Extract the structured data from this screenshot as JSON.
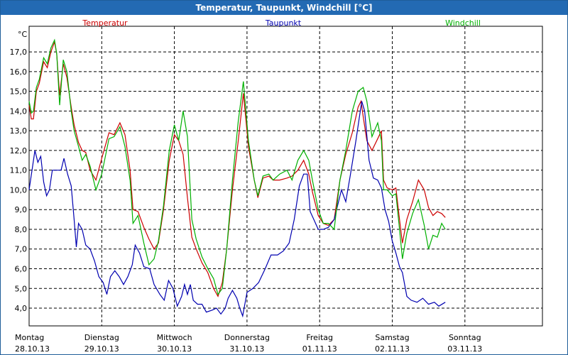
{
  "window": {
    "title": "Temperatur, Taupunkt, Windchill [°C]"
  },
  "chart_data": {
    "type": "line",
    "title": "Temperatur, Taupunkt, Windchill [°C]",
    "ylabel": "°C",
    "ylim": [
      3.1,
      18.3
    ],
    "xlim": [
      0,
      7
    ],
    "grid": true,
    "legend": "top",
    "yticks": [
      4.0,
      5.0,
      6.0,
      7.0,
      8.0,
      9.0,
      10.0,
      11.0,
      12.0,
      13.0,
      14.0,
      15.0,
      16.0,
      17.0
    ],
    "ytick_labels": [
      "4,0",
      "5,0",
      "6,0",
      "7,0",
      "8,0",
      "9,0",
      "10,0",
      "11,0",
      "12,0",
      "13,0",
      "14,0",
      "15,0",
      "16,0",
      "17,0"
    ],
    "x_day_labels": [
      {
        "day": "Montag",
        "date": "28.10.13"
      },
      {
        "day": "Dienstag",
        "date": "29.10.13"
      },
      {
        "day": "Mittwoch",
        "date": "30.10.13"
      },
      {
        "day": "Donnerstag",
        "date": "31.10.13"
      },
      {
        "day": "Freitag",
        "date": "01.11.13"
      },
      {
        "day": "Samstag",
        "date": "02.11.13"
      },
      {
        "day": "Sonntag",
        "date": "03.11.13"
      }
    ],
    "series": [
      {
        "name": "Temperatur",
        "color": "#cc0000",
        "points": [
          [
            0,
            14.3
          ],
          [
            0.03,
            13.6
          ],
          [
            0.06,
            13.6
          ],
          [
            0.1,
            15.0
          ],
          [
            0.14,
            15.4
          ],
          [
            0.2,
            16.5
          ],
          [
            0.25,
            16.2
          ],
          [
            0.3,
            17.0
          ],
          [
            0.35,
            17.5
          ],
          [
            0.38,
            16.9
          ],
          [
            0.42,
            14.8
          ],
          [
            0.47,
            16.4
          ],
          [
            0.52,
            15.7
          ],
          [
            0.58,
            14.2
          ],
          [
            0.62,
            13.3
          ],
          [
            0.68,
            12.4
          ],
          [
            0.73,
            12.0
          ],
          [
            0.78,
            11.9
          ],
          [
            0.84,
            11.0
          ],
          [
            0.92,
            10.5
          ],
          [
            1.0,
            11.6
          ],
          [
            1.1,
            12.9
          ],
          [
            1.17,
            12.8
          ],
          [
            1.25,
            13.4
          ],
          [
            1.32,
            12.8
          ],
          [
            1.39,
            11.0
          ],
          [
            1.43,
            9.0
          ],
          [
            1.5,
            8.9
          ],
          [
            1.58,
            8.1
          ],
          [
            1.65,
            7.5
          ],
          [
            1.72,
            7.0
          ],
          [
            1.78,
            7.3
          ],
          [
            1.85,
            9.0
          ],
          [
            1.93,
            11.5
          ],
          [
            2.0,
            12.8
          ],
          [
            2.06,
            12.5
          ],
          [
            2.12,
            11.8
          ],
          [
            2.18,
            9.6
          ],
          [
            2.24,
            7.6
          ],
          [
            2.3,
            7.0
          ],
          [
            2.38,
            6.3
          ],
          [
            2.46,
            5.8
          ],
          [
            2.54,
            5.0
          ],
          [
            2.6,
            4.6
          ],
          [
            2.66,
            5.3
          ],
          [
            2.72,
            7.0
          ],
          [
            2.8,
            10.0
          ],
          [
            2.88,
            12.5
          ],
          [
            2.95,
            14.9
          ],
          [
            3.02,
            12.2
          ],
          [
            3.1,
            10.5
          ],
          [
            3.15,
            9.6
          ],
          [
            3.22,
            10.6
          ],
          [
            3.3,
            10.7
          ],
          [
            3.36,
            10.5
          ],
          [
            3.45,
            10.5
          ],
          [
            3.55,
            10.6
          ],
          [
            3.62,
            10.7
          ],
          [
            3.7,
            11.0
          ],
          [
            3.78,
            11.5
          ],
          [
            3.85,
            10.8
          ],
          [
            3.9,
            9.9
          ],
          [
            3.98,
            8.7
          ],
          [
            4.05,
            8.3
          ],
          [
            4.12,
            8.2
          ],
          [
            4.2,
            8.5
          ],
          [
            4.28,
            10.5
          ],
          [
            4.36,
            11.8
          ],
          [
            4.45,
            12.9
          ],
          [
            4.53,
            14.2
          ],
          [
            4.57,
            14.5
          ],
          [
            4.6,
            13.7
          ],
          [
            4.65,
            12.5
          ],
          [
            4.72,
            12.0
          ],
          [
            4.8,
            12.6
          ],
          [
            4.85,
            13.0
          ],
          [
            4.88,
            10.5
          ],
          [
            4.93,
            10.1
          ],
          [
            5.0,
            10.0
          ],
          [
            5.05,
            10.1
          ],
          [
            5.1,
            8.5
          ],
          [
            5.14,
            7.3
          ],
          [
            5.2,
            8.5
          ],
          [
            5.28,
            9.4
          ],
          [
            5.36,
            10.5
          ],
          [
            5.44,
            10.0
          ],
          [
            5.5,
            9.1
          ],
          [
            5.56,
            8.7
          ],
          [
            5.62,
            8.9
          ],
          [
            5.68,
            8.8
          ],
          [
            5.73,
            8.6
          ]
        ]
      },
      {
        "name": "Taupunkt",
        "color": "#0000b0",
        "points": [
          [
            0,
            10.0
          ],
          [
            0.04,
            11.0
          ],
          [
            0.08,
            12.0
          ],
          [
            0.12,
            11.4
          ],
          [
            0.16,
            11.7
          ],
          [
            0.2,
            10.4
          ],
          [
            0.24,
            9.7
          ],
          [
            0.28,
            10.0
          ],
          [
            0.32,
            11.0
          ],
          [
            0.38,
            11.0
          ],
          [
            0.44,
            11.0
          ],
          [
            0.48,
            11.6
          ],
          [
            0.53,
            10.8
          ],
          [
            0.58,
            10.2
          ],
          [
            0.62,
            8.5
          ],
          [
            0.65,
            7.1
          ],
          [
            0.68,
            8.3
          ],
          [
            0.73,
            8.0
          ],
          [
            0.78,
            7.2
          ],
          [
            0.84,
            7.0
          ],
          [
            0.9,
            6.4
          ],
          [
            0.96,
            5.6
          ],
          [
            1.02,
            5.3
          ],
          [
            1.07,
            4.7
          ],
          [
            1.12,
            5.6
          ],
          [
            1.18,
            5.9
          ],
          [
            1.24,
            5.6
          ],
          [
            1.3,
            5.2
          ],
          [
            1.36,
            5.6
          ],
          [
            1.42,
            6.2
          ],
          [
            1.46,
            7.2
          ],
          [
            1.52,
            6.8
          ],
          [
            1.58,
            6.1
          ],
          [
            1.66,
            6.0
          ],
          [
            1.72,
            5.2
          ],
          [
            1.8,
            4.7
          ],
          [
            1.86,
            4.4
          ],
          [
            1.92,
            5.4
          ],
          [
            1.98,
            5.0
          ],
          [
            2.04,
            4.1
          ],
          [
            2.1,
            4.6
          ],
          [
            2.14,
            5.2
          ],
          [
            2.18,
            4.7
          ],
          [
            2.22,
            5.2
          ],
          [
            2.26,
            4.4
          ],
          [
            2.32,
            4.2
          ],
          [
            2.38,
            4.2
          ],
          [
            2.44,
            3.8
          ],
          [
            2.52,
            3.9
          ],
          [
            2.58,
            4.0
          ],
          [
            2.64,
            3.7
          ],
          [
            2.7,
            4.0
          ],
          [
            2.74,
            4.5
          ],
          [
            2.8,
            4.9
          ],
          [
            2.86,
            4.5
          ],
          [
            2.9,
            4.0
          ],
          [
            2.94,
            3.6
          ],
          [
            3.0,
            4.8
          ],
          [
            3.08,
            5.0
          ],
          [
            3.16,
            5.3
          ],
          [
            3.25,
            6.0
          ],
          [
            3.33,
            6.7
          ],
          [
            3.42,
            6.7
          ],
          [
            3.5,
            6.9
          ],
          [
            3.58,
            7.3
          ],
          [
            3.65,
            8.5
          ],
          [
            3.72,
            10.2
          ],
          [
            3.78,
            10.8
          ],
          [
            3.83,
            10.8
          ],
          [
            3.87,
            8.9
          ],
          [
            3.92,
            8.5
          ],
          [
            3.98,
            8.0
          ],
          [
            4.05,
            8.0
          ],
          [
            4.12,
            8.1
          ],
          [
            4.2,
            8.5
          ],
          [
            4.3,
            10.0
          ],
          [
            4.36,
            9.4
          ],
          [
            4.42,
            10.7
          ],
          [
            4.5,
            12.5
          ],
          [
            4.58,
            14.5
          ],
          [
            4.62,
            14.0
          ],
          [
            4.68,
            11.5
          ],
          [
            4.74,
            10.6
          ],
          [
            4.8,
            10.5
          ],
          [
            4.85,
            10.1
          ],
          [
            4.9,
            9.0
          ],
          [
            4.95,
            8.4
          ],
          [
            5.0,
            7.4
          ],
          [
            5.05,
            6.8
          ],
          [
            5.1,
            6.1
          ],
          [
            5.14,
            5.8
          ],
          [
            5.2,
            4.6
          ],
          [
            5.26,
            4.4
          ],
          [
            5.34,
            4.3
          ],
          [
            5.42,
            4.5
          ],
          [
            5.5,
            4.2
          ],
          [
            5.58,
            4.3
          ],
          [
            5.64,
            4.1
          ],
          [
            5.73,
            4.3
          ]
        ]
      },
      {
        "name": "Windchill",
        "color": "#00b000",
        "points": [
          [
            0,
            14.5
          ],
          [
            0.03,
            13.9
          ],
          [
            0.06,
            14.0
          ],
          [
            0.1,
            15.2
          ],
          [
            0.14,
            15.6
          ],
          [
            0.2,
            16.7
          ],
          [
            0.25,
            16.4
          ],
          [
            0.3,
            17.2
          ],
          [
            0.35,
            17.6
          ],
          [
            0.38,
            16.9
          ],
          [
            0.42,
            14.3
          ],
          [
            0.47,
            16.6
          ],
          [
            0.52,
            16.0
          ],
          [
            0.58,
            14.0
          ],
          [
            0.62,
            13.0
          ],
          [
            0.68,
            12.2
          ],
          [
            0.73,
            11.5
          ],
          [
            0.78,
            11.8
          ],
          [
            0.84,
            11.2
          ],
          [
            0.92,
            10.0
          ],
          [
            1.0,
            10.8
          ],
          [
            1.1,
            12.6
          ],
          [
            1.17,
            12.7
          ],
          [
            1.25,
            13.2
          ],
          [
            1.32,
            12.2
          ],
          [
            1.39,
            10.5
          ],
          [
            1.43,
            8.3
          ],
          [
            1.5,
            8.7
          ],
          [
            1.58,
            7.3
          ],
          [
            1.65,
            6.2
          ],
          [
            1.72,
            6.5
          ],
          [
            1.78,
            7.4
          ],
          [
            1.85,
            9.2
          ],
          [
            1.93,
            12.0
          ],
          [
            2.0,
            13.3
          ],
          [
            2.06,
            12.5
          ],
          [
            2.12,
            14.0
          ],
          [
            2.18,
            12.7
          ],
          [
            2.24,
            8.5
          ],
          [
            2.3,
            7.5
          ],
          [
            2.38,
            6.6
          ],
          [
            2.46,
            6.0
          ],
          [
            2.54,
            5.5
          ],
          [
            2.6,
            4.7
          ],
          [
            2.66,
            5.0
          ],
          [
            2.72,
            7.0
          ],
          [
            2.8,
            10.5
          ],
          [
            2.88,
            13.5
          ],
          [
            2.95,
            15.5
          ],
          [
            3.02,
            12.5
          ],
          [
            3.1,
            10.5
          ],
          [
            3.15,
            9.7
          ],
          [
            3.22,
            10.7
          ],
          [
            3.3,
            10.8
          ],
          [
            3.36,
            10.5
          ],
          [
            3.45,
            10.8
          ],
          [
            3.55,
            11.0
          ],
          [
            3.62,
            10.5
          ],
          [
            3.7,
            11.5
          ],
          [
            3.78,
            12.0
          ],
          [
            3.85,
            11.5
          ],
          [
            3.9,
            10.5
          ],
          [
            3.98,
            9.0
          ],
          [
            4.05,
            8.3
          ],
          [
            4.12,
            8.3
          ],
          [
            4.2,
            8.0
          ],
          [
            4.28,
            10.5
          ],
          [
            4.36,
            12.0
          ],
          [
            4.45,
            14.0
          ],
          [
            4.53,
            15.0
          ],
          [
            4.6,
            15.2
          ],
          [
            4.65,
            14.5
          ],
          [
            4.72,
            12.7
          ],
          [
            4.8,
            13.4
          ],
          [
            4.85,
            12.5
          ],
          [
            4.88,
            10.0
          ],
          [
            4.93,
            10.0
          ],
          [
            5.0,
            9.7
          ],
          [
            5.05,
            9.8
          ],
          [
            5.1,
            8.0
          ],
          [
            5.14,
            6.5
          ],
          [
            5.2,
            7.8
          ],
          [
            5.28,
            8.8
          ],
          [
            5.36,
            9.5
          ],
          [
            5.44,
            8.2
          ],
          [
            5.5,
            7.0
          ],
          [
            5.56,
            7.7
          ],
          [
            5.62,
            7.6
          ],
          [
            5.68,
            8.3
          ],
          [
            5.73,
            8.0
          ]
        ]
      }
    ]
  }
}
